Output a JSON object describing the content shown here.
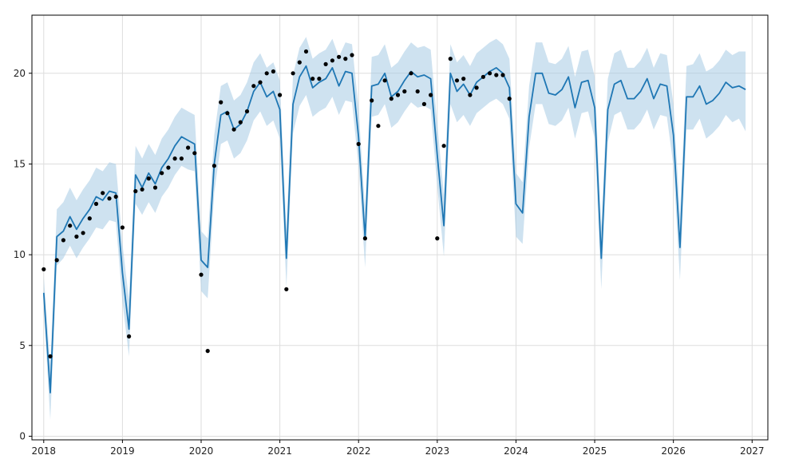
{
  "chart_data": {
    "type": "line",
    "title": "",
    "xlabel": "",
    "ylabel": "",
    "xlim": [
      2017.85,
      2027.2
    ],
    "ylim": [
      -0.2,
      23.2
    ],
    "grid": true,
    "x_ticks": [
      {
        "value": 2018,
        "label": "2018"
      },
      {
        "value": 2019,
        "label": "2019"
      },
      {
        "value": 2020,
        "label": "2020"
      },
      {
        "value": 2021,
        "label": "2021"
      },
      {
        "value": 2022,
        "label": "2022"
      },
      {
        "value": 2023,
        "label": "2023"
      },
      {
        "value": 2024,
        "label": "2024"
      },
      {
        "value": 2025,
        "label": "2025"
      },
      {
        "value": 2026,
        "label": "2026"
      },
      {
        "value": 2027,
        "label": "2027"
      }
    ],
    "y_ticks": [
      {
        "value": 0,
        "label": "0"
      },
      {
        "value": 5,
        "label": "5"
      },
      {
        "value": 10,
        "label": "10"
      },
      {
        "value": 15,
        "label": "15"
      },
      {
        "value": 20,
        "label": "20"
      }
    ],
    "colors": {
      "forecast_line": "#1f77b4",
      "uncertainty_band": "#a6cbe3",
      "observed_points": "#000000",
      "grid": "#dddddd",
      "axes": "#000000"
    },
    "series": [
      {
        "role": "forecast",
        "x": [
          "2018-01",
          "2018-02",
          "2018-03",
          "2018-04",
          "2018-05",
          "2018-06",
          "2018-07",
          "2018-08",
          "2018-09",
          "2018-10",
          "2018-11",
          "2018-12",
          "2019-01",
          "2019-02",
          "2019-03",
          "2019-04",
          "2019-05",
          "2019-06",
          "2019-07",
          "2019-08",
          "2019-09",
          "2019-10",
          "2019-11",
          "2019-12",
          "2020-01",
          "2020-02",
          "2020-03",
          "2020-04",
          "2020-05",
          "2020-06",
          "2020-07",
          "2020-08",
          "2020-09",
          "2020-10",
          "2020-11",
          "2020-12",
          "2021-01",
          "2021-02",
          "2021-03",
          "2021-04",
          "2021-05",
          "2021-06",
          "2021-07",
          "2021-08",
          "2021-09",
          "2021-10",
          "2021-11",
          "2021-12",
          "2022-01",
          "2022-02",
          "2022-03",
          "2022-04",
          "2022-05",
          "2022-06",
          "2022-07",
          "2022-08",
          "2022-09",
          "2022-10",
          "2022-11",
          "2022-12",
          "2023-01",
          "2023-02",
          "2023-03",
          "2023-04",
          "2023-05",
          "2023-06",
          "2023-07",
          "2023-08",
          "2023-09",
          "2023-10",
          "2023-11",
          "2023-12",
          "2024-01",
          "2024-02",
          "2024-03",
          "2024-04",
          "2024-05",
          "2024-06",
          "2024-07",
          "2024-08",
          "2024-09",
          "2024-10",
          "2024-11",
          "2024-12",
          "2025-01",
          "2025-02",
          "2025-03",
          "2025-04",
          "2025-05",
          "2025-06",
          "2025-07",
          "2025-08",
          "2025-09",
          "2025-10",
          "2025-11",
          "2025-12",
          "2026-01",
          "2026-02",
          "2026-03",
          "2026-04",
          "2026-05",
          "2026-06",
          "2026-07",
          "2026-08",
          "2026-09",
          "2026-10",
          "2026-11",
          "2026-12"
        ],
        "values": [
          7.9,
          2.4,
          11.0,
          11.3,
          12.1,
          11.4,
          12.0,
          12.5,
          13.2,
          13.0,
          13.5,
          13.4,
          9.0,
          5.9,
          14.4,
          13.7,
          14.5,
          13.9,
          14.8,
          15.3,
          16.0,
          16.5,
          16.3,
          16.1,
          9.7,
          9.3,
          15.0,
          17.7,
          17.9,
          16.9,
          17.2,
          17.9,
          19.0,
          19.5,
          18.7,
          19.0,
          18.0,
          9.8,
          18.3,
          19.8,
          20.4,
          19.2,
          19.5,
          19.7,
          20.3,
          19.3,
          20.1,
          20.0,
          16.5,
          10.9,
          19.3,
          19.4,
          20.0,
          18.7,
          19.0,
          19.6,
          20.1,
          19.8,
          19.9,
          19.7,
          15.5,
          11.6,
          20.0,
          19.0,
          19.4,
          18.8,
          19.5,
          19.8,
          20.1,
          20.3,
          20.0,
          19.2,
          12.8,
          12.3,
          17.6,
          20.0,
          20.0,
          18.9,
          18.8,
          19.1,
          19.8,
          18.1,
          19.5,
          19.6,
          18.1,
          9.8,
          18.0,
          19.4,
          19.6,
          18.6,
          18.6,
          19.0,
          19.7,
          18.6,
          19.4,
          19.3,
          16.6,
          10.4,
          18.7,
          18.7,
          19.3,
          18.3,
          18.5,
          18.9,
          19.5,
          19.2,
          19.3,
          19.1
        ]
      },
      {
        "role": "uncertainty_band",
        "x_ref": "forecast",
        "lower": [
          7.0,
          0.9,
          9.4,
          9.8,
          10.5,
          9.8,
          10.4,
          10.9,
          11.5,
          11.4,
          11.9,
          11.8,
          7.4,
          4.4,
          12.8,
          12.2,
          12.9,
          12.3,
          13.2,
          13.7,
          14.4,
          14.9,
          14.7,
          14.6,
          8.0,
          7.6,
          13.4,
          16.1,
          16.3,
          15.3,
          15.6,
          16.3,
          17.4,
          17.9,
          17.1,
          17.4,
          16.4,
          8.2,
          16.7,
          18.2,
          18.8,
          17.6,
          17.9,
          18.1,
          18.7,
          17.7,
          18.5,
          18.4,
          14.9,
          9.3,
          17.6,
          17.7,
          18.3,
          17.0,
          17.3,
          17.9,
          18.4,
          18.1,
          18.2,
          18.0,
          13.8,
          9.9,
          18.3,
          17.3,
          17.7,
          17.1,
          17.8,
          18.1,
          18.4,
          18.6,
          18.3,
          17.5,
          11.0,
          10.6,
          15.9,
          18.3,
          18.3,
          17.2,
          17.1,
          17.4,
          18.1,
          16.4,
          17.8,
          17.9,
          16.4,
          8.1,
          16.2,
          17.7,
          17.9,
          16.9,
          16.9,
          17.3,
          18.0,
          16.9,
          17.7,
          17.6,
          14.9,
          8.6,
          16.9,
          16.9,
          17.5,
          16.4,
          16.7,
          17.1,
          17.7,
          17.3,
          17.5,
          16.8
        ],
        "upper": [
          8.8,
          3.9,
          12.5,
          12.9,
          13.7,
          13.0,
          13.6,
          14.1,
          14.8,
          14.6,
          15.1,
          15.0,
          10.6,
          7.5,
          16.0,
          15.3,
          16.1,
          15.5,
          16.4,
          16.9,
          17.6,
          18.1,
          17.9,
          17.7,
          11.3,
          10.9,
          16.6,
          19.3,
          19.5,
          18.5,
          18.8,
          19.5,
          20.6,
          21.1,
          20.3,
          20.6,
          19.6,
          11.4,
          19.9,
          21.4,
          22.0,
          20.8,
          21.1,
          21.3,
          21.9,
          20.9,
          21.7,
          21.6,
          18.1,
          12.5,
          20.9,
          21.0,
          21.6,
          20.3,
          20.6,
          21.2,
          21.7,
          21.4,
          21.5,
          21.3,
          17.2,
          13.3,
          21.6,
          20.6,
          21.0,
          20.4,
          21.1,
          21.4,
          21.7,
          21.9,
          21.6,
          20.8,
          14.5,
          14.0,
          19.3,
          21.7,
          21.7,
          20.6,
          20.5,
          20.8,
          21.5,
          19.8,
          21.2,
          21.3,
          19.8,
          11.5,
          19.7,
          21.1,
          21.3,
          20.3,
          20.3,
          20.7,
          21.4,
          20.3,
          21.1,
          21.0,
          18.3,
          12.2,
          20.4,
          20.5,
          21.1,
          20.1,
          20.3,
          20.7,
          21.3,
          21.0,
          21.2,
          21.2
        ]
      },
      {
        "role": "observed",
        "x": [
          "2018-01",
          "2018-02",
          "2018-03",
          "2018-04",
          "2018-05",
          "2018-06",
          "2018-07",
          "2018-08",
          "2018-09",
          "2018-10",
          "2018-11",
          "2018-12",
          "2019-01",
          "2019-02",
          "2019-03",
          "2019-04",
          "2019-05",
          "2019-06",
          "2019-07",
          "2019-08",
          "2019-09",
          "2019-10",
          "2019-11",
          "2019-12",
          "2020-01",
          "2020-02",
          "2020-03",
          "2020-04",
          "2020-05",
          "2020-06",
          "2020-07",
          "2020-08",
          "2020-09",
          "2020-10",
          "2020-11",
          "2020-12",
          "2021-01",
          "2021-02",
          "2021-03",
          "2021-04",
          "2021-05",
          "2021-06",
          "2021-07",
          "2021-08",
          "2021-09",
          "2021-10",
          "2021-11",
          "2021-12",
          "2022-01",
          "2022-02",
          "2022-03",
          "2022-04",
          "2022-05",
          "2022-06",
          "2022-07",
          "2022-08",
          "2022-09",
          "2022-10",
          "2022-11",
          "2022-12",
          "2023-01",
          "2023-02",
          "2023-03",
          "2023-04",
          "2023-05",
          "2023-06",
          "2023-07",
          "2023-08",
          "2023-09",
          "2023-10",
          "2023-11",
          "2023-12"
        ],
        "values": [
          9.2,
          4.4,
          9.7,
          10.8,
          11.6,
          11.0,
          11.2,
          12.0,
          12.8,
          13.4,
          13.1,
          13.2,
          11.5,
          5.5,
          13.5,
          13.6,
          14.2,
          13.7,
          14.5,
          14.8,
          15.3,
          15.3,
          15.9,
          15.6,
          8.9,
          4.7,
          14.9,
          18.4,
          17.8,
          16.9,
          17.3,
          17.9,
          19.3,
          19.5,
          20.0,
          20.1,
          18.8,
          8.1,
          20.0,
          20.6,
          21.2,
          19.7,
          19.7,
          20.5,
          20.7,
          20.9,
          20.8,
          21.0,
          16.1,
          10.9,
          18.5,
          17.1,
          19.6,
          18.6,
          18.8,
          19.0,
          20.0,
          19.0,
          18.3,
          18.8,
          10.9,
          16.0,
          20.8,
          19.6,
          19.7,
          18.8,
          19.2,
          19.8,
          20.0,
          19.9,
          19.9,
          18.6
        ]
      }
    ]
  }
}
